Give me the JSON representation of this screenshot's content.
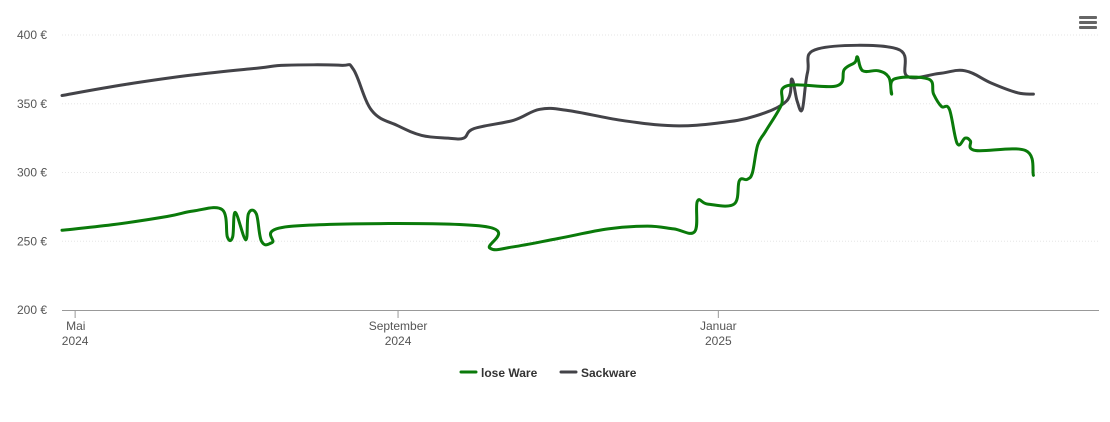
{
  "menu_icon": "hamburger-menu-icon",
  "chart_data": {
    "type": "line",
    "title": "",
    "xlabel": "",
    "ylabel": "",
    "ylim": [
      200,
      400
    ],
    "xlim": [
      "2024-04-26",
      "2025-05-26"
    ],
    "grid": true,
    "legend": "bottom-center",
    "y_ticks": [
      {
        "value": 200,
        "label": "200 €"
      },
      {
        "value": 250,
        "label": "250 €"
      },
      {
        "value": 300,
        "label": "300 €"
      },
      {
        "value": 350,
        "label": "350 €"
      },
      {
        "value": 400,
        "label": "400 €"
      }
    ],
    "x_ticks": [
      {
        "date": "2024-05-01",
        "month": "Mai",
        "year": "2024"
      },
      {
        "date": "2024-09-01",
        "month": "September",
        "year": "2024"
      },
      {
        "date": "2025-01-01",
        "month": "Januar",
        "year": "2025"
      }
    ],
    "series": [
      {
        "name": "lose Ware",
        "color": "#0a7a0a",
        "points": [
          [
            "2024-04-26",
            258
          ],
          [
            "2024-05-15",
            262
          ],
          [
            "2024-06-05",
            268
          ],
          [
            "2024-06-15",
            272
          ],
          [
            "2024-06-26",
            273
          ],
          [
            "2024-06-28",
            253
          ],
          [
            "2024-06-30",
            253
          ],
          [
            "2024-07-01",
            271
          ],
          [
            "2024-07-05",
            251
          ],
          [
            "2024-07-06",
            270
          ],
          [
            "2024-07-09",
            270
          ],
          [
            "2024-07-11",
            250
          ],
          [
            "2024-07-15",
            249
          ],
          [
            "2024-07-23",
            261
          ],
          [
            "2024-10-03",
            261
          ],
          [
            "2024-10-06",
            245
          ],
          [
            "2024-10-15",
            246
          ],
          [
            "2024-11-01",
            252
          ],
          [
            "2024-11-20",
            259
          ],
          [
            "2024-12-05",
            261
          ],
          [
            "2024-12-15",
            259
          ],
          [
            "2024-12-23",
            257
          ],
          [
            "2024-12-24",
            279
          ],
          [
            "2024-12-28",
            277
          ],
          [
            "2025-01-07",
            277
          ],
          [
            "2025-01-09",
            294
          ],
          [
            "2025-01-12",
            295
          ],
          [
            "2025-01-14",
            300
          ],
          [
            "2025-01-16",
            320
          ],
          [
            "2025-01-19",
            330
          ],
          [
            "2025-01-25",
            349
          ],
          [
            "2025-01-27",
            363
          ],
          [
            "2025-02-15",
            363
          ],
          [
            "2025-02-18",
            375
          ],
          [
            "2025-02-22",
            380
          ],
          [
            "2025-02-23",
            384
          ],
          [
            "2025-02-25",
            374
          ],
          [
            "2025-03-03",
            374
          ],
          [
            "2025-03-07",
            369
          ],
          [
            "2025-03-08",
            357
          ],
          [
            "2025-03-09",
            368
          ],
          [
            "2025-03-22",
            368
          ],
          [
            "2025-03-24",
            357
          ],
          [
            "2025-03-27",
            348
          ],
          [
            "2025-03-30",
            346
          ],
          [
            "2025-04-02",
            321
          ],
          [
            "2025-04-05",
            325
          ],
          [
            "2025-04-07",
            323
          ],
          [
            "2025-04-09",
            316
          ],
          [
            "2025-04-28",
            316
          ],
          [
            "2025-05-01",
            298
          ]
        ]
      },
      {
        "name": "Sackware",
        "color": "#434348",
        "points": [
          [
            "2024-04-26",
            356
          ],
          [
            "2024-05-20",
            364
          ],
          [
            "2024-06-15",
            371
          ],
          [
            "2024-07-10",
            376
          ],
          [
            "2024-07-20",
            378
          ],
          [
            "2024-08-10",
            378
          ],
          [
            "2024-08-15",
            375
          ],
          [
            "2024-08-22",
            345
          ],
          [
            "2024-09-01",
            334
          ],
          [
            "2024-09-10",
            327
          ],
          [
            "2024-09-20",
            325
          ],
          [
            "2024-09-26",
            325
          ],
          [
            "2024-09-30",
            332
          ],
          [
            "2024-10-15",
            338
          ],
          [
            "2024-10-25",
            346
          ],
          [
            "2024-11-05",
            345
          ],
          [
            "2024-11-25",
            338
          ],
          [
            "2024-12-15",
            334
          ],
          [
            "2025-01-01",
            336
          ],
          [
            "2025-01-15",
            341
          ],
          [
            "2025-01-27",
            352
          ],
          [
            "2025-01-29",
            368
          ],
          [
            "2025-01-31",
            352
          ],
          [
            "2025-02-02",
            346
          ],
          [
            "2025-02-04",
            373
          ],
          [
            "2025-02-08",
            390
          ],
          [
            "2025-03-10",
            390
          ],
          [
            "2025-03-14",
            370
          ],
          [
            "2025-03-26",
            372
          ],
          [
            "2025-04-05",
            374
          ],
          [
            "2025-04-15",
            365
          ],
          [
            "2025-04-25",
            358
          ],
          [
            "2025-05-01",
            357
          ]
        ]
      }
    ]
  }
}
